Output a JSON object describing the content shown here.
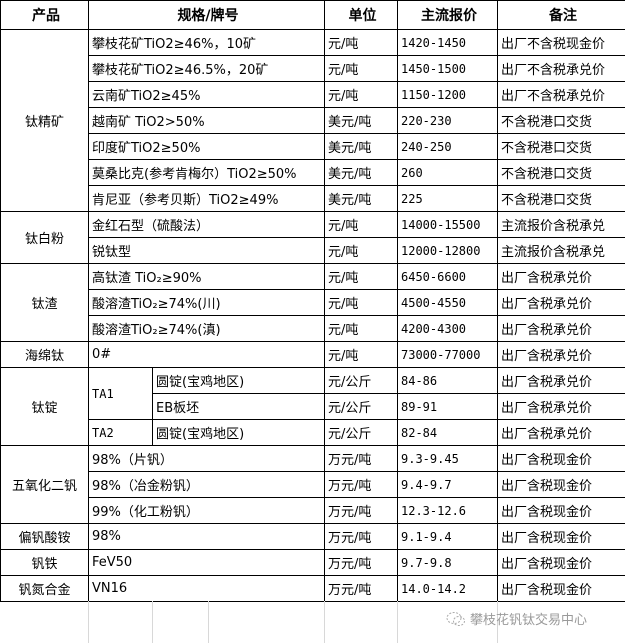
{
  "headers": [
    "产品",
    "规格/牌号",
    "单位",
    "主流报价",
    "备注"
  ],
  "groups": [
    {
      "product": "钛精矿",
      "rows": [
        {
          "spec": "攀枝花矿TiO2≥46%，10矿",
          "unit": "元/吨",
          "price": "1420-1450",
          "note": "出厂不含税现金价"
        },
        {
          "spec": "攀枝花矿TiO2≥46.5%，20矿",
          "unit": "元/吨",
          "price": "1450-1500",
          "note": "出厂不含税承兑价"
        },
        {
          "spec": "云南矿TiO2≥45%",
          "unit": "元/吨",
          "price": "1150-1200",
          "note": "出厂不含税承兑价"
        },
        {
          "spec": "越南矿 TiO2>50%",
          "unit": "美元/吨",
          "price": "220-230",
          "note": "不含税港口交货"
        },
        {
          "spec": "印度矿TiO2≥50%",
          "unit": "美元/吨",
          "price": "240-250",
          "note": "不含税港口交货"
        },
        {
          "spec": "莫桑比克(参考肯梅尔）TiO2≥50%",
          "unit": "美元/吨",
          "price": "260",
          "note": "不含税港口交货"
        },
        {
          "spec": "肯尼亚（参考贝斯）TiO2≥49%",
          "unit": "美元/吨",
          "price": "225",
          "note": "不含税港口交货"
        }
      ]
    },
    {
      "product": "钛白粉",
      "rows": [
        {
          "spec": "金红石型（硫酸法）",
          "unit": "元/吨",
          "price": "14000-15500",
          "note": "主流报价含税承兑"
        },
        {
          "spec": "锐钛型",
          "unit": "元/吨",
          "price": "12000-12800",
          "note": "主流报价含税承兑"
        }
      ]
    },
    {
      "product": "钛渣",
      "rows": [
        {
          "spec": "高钛渣 TiO₂≥90%",
          "unit": "元/吨",
          "price": "6450-6600",
          "note": "出厂含税承兑价"
        },
        {
          "spec": "酸溶渣TiO₂≥74%(川)",
          "unit": "元/吨",
          "price": "4500-4550",
          "note": "出厂含税承兑价"
        },
        {
          "spec": "酸溶渣TiO₂≥74%(滇)",
          "unit": "元/吨",
          "price": "4200-4300",
          "note": "出厂含税承兑价"
        }
      ]
    },
    {
      "product": "海绵钛",
      "rows": [
        {
          "spec": "0#",
          "unit": "元/吨",
          "price": "73000-77000",
          "note": "出厂含税承兑价"
        }
      ]
    },
    {
      "product": "钛锭",
      "rows": [
        {
          "grade": "TA1",
          "grade_span": 2,
          "spec": "圆锭(宝鸡地区)",
          "unit": "元/公斤",
          "price": "84-86",
          "note": "出厂含税承兑价"
        },
        {
          "spec": "EB板坯",
          "unit": "元/公斤",
          "price": "89-91",
          "note": "出厂含税承兑价",
          "sub": true
        },
        {
          "grade": "TA2",
          "grade_span": 1,
          "spec": "圆锭(宝鸡地区)",
          "unit": "元/公斤",
          "price": "82-84",
          "note": "出厂含税承兑价"
        }
      ]
    },
    {
      "product": "五氧化二钒",
      "rows": [
        {
          "spec": "98%（片钒）",
          "unit": "万元/吨",
          "price": "9.3-9.45",
          "note": "出厂含税现金价"
        },
        {
          "spec": "98%（冶金粉钒）",
          "unit": "万元/吨",
          "price": "9.4-9.7",
          "note": "出厂含税现金价"
        },
        {
          "spec": "99%（化工粉钒）",
          "unit": "万元/吨",
          "price": "12.3-12.6",
          "note": "出厂含税现金价"
        }
      ]
    },
    {
      "product": "偏钒酸铵",
      "rows": [
        {
          "spec": "98%",
          "unit": "万元/吨",
          "price": "9.1-9.4",
          "note": "出厂含税现金价"
        }
      ]
    },
    {
      "product": "钒铁",
      "rows": [
        {
          "spec": "FeV50",
          "unit": "万元/吨",
          "price": "9.7-9.8",
          "note": "出厂含税现金价"
        }
      ]
    },
    {
      "product": "钒氮合金",
      "rows": [
        {
          "spec": "VN16",
          "unit": "万元/吨",
          "price": "14.0-14.2",
          "note": "出厂含税现金价"
        }
      ]
    }
  ],
  "watermark": {
    "icon": "wechat-icon",
    "text": "攀枝花钒钛交易中心"
  }
}
